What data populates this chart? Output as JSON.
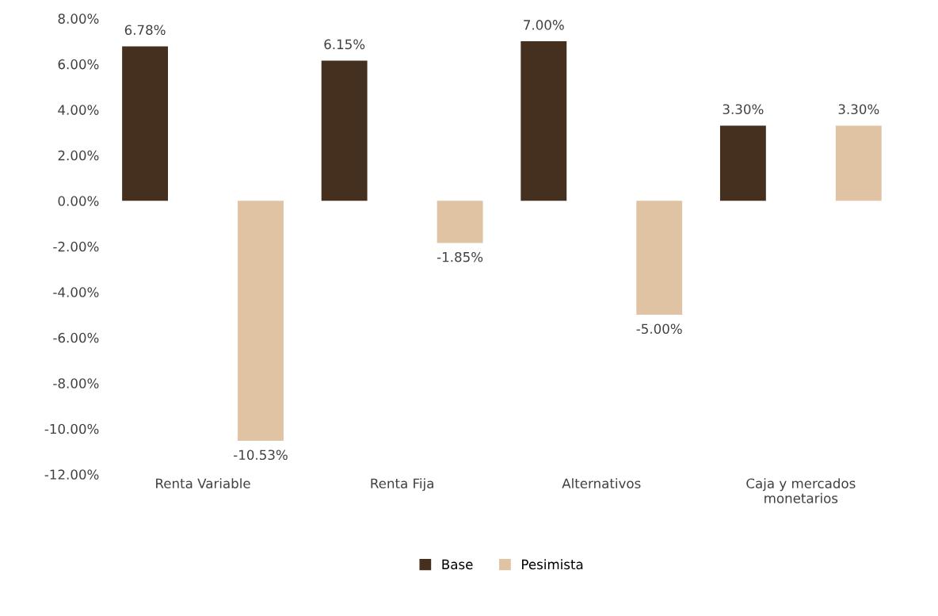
{
  "chart_data": {
    "type": "bar",
    "categories": [
      "Renta Variable",
      "Renta Fija",
      "Alternativos",
      "Caja y mercados\nmonetarios"
    ],
    "series": [
      {
        "name": "Base",
        "color": "#452f1e",
        "values": [
          6.78,
          6.15,
          7.0,
          3.3
        ],
        "value_labels": [
          "6.78%",
          "6.15%",
          "7.00%",
          "3.30%"
        ]
      },
      {
        "name": "Pesimista",
        "color": "#dfc3a2",
        "values": [
          -10.53,
          -1.85,
          -5.0,
          3.3
        ],
        "value_labels": [
          "-10.53%",
          "-1.85%",
          "-5.00%",
          "3.30%"
        ]
      }
    ],
    "ylim": [
      -12,
      8
    ],
    "yticks": [
      {
        "value": -12,
        "label": "-12.00%"
      },
      {
        "value": -10,
        "label": "-10.00%"
      },
      {
        "value": -8,
        "label": "-8.00%"
      },
      {
        "value": -6,
        "label": "-6.00%"
      },
      {
        "value": -4,
        "label": "-4.00%"
      },
      {
        "value": -2,
        "label": "-2.00%"
      },
      {
        "value": 0,
        "label": "0.00%"
      },
      {
        "value": 2,
        "label": "2.00%"
      },
      {
        "value": 4,
        "label": "4.00%"
      },
      {
        "value": 6,
        "label": "6.00%"
      },
      {
        "value": 8,
        "label": "8.00%"
      }
    ],
    "grid": false,
    "legend": "bottom"
  }
}
